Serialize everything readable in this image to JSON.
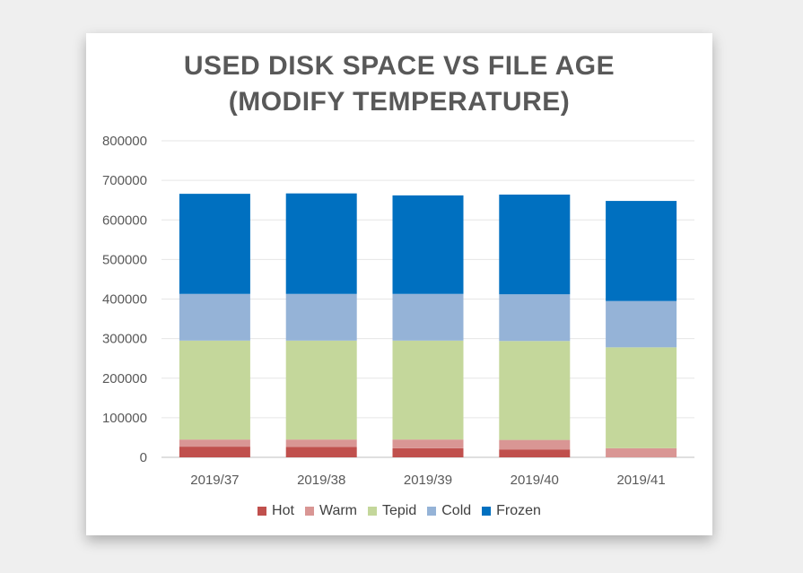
{
  "chart_data": {
    "type": "bar",
    "stacked": true,
    "title": "USED DISK SPACE VS FILE AGE",
    "subtitle": "(MODIFY TEMPERATURE)",
    "categories": [
      "2019/37",
      "2019/38",
      "2019/39",
      "2019/40",
      "2019/41"
    ],
    "series": [
      {
        "name": "Hot",
        "color": "#c0504d",
        "values": [
          27000,
          26000,
          23000,
          20000,
          0
        ]
      },
      {
        "name": "Warm",
        "color": "#d99694",
        "values": [
          18000,
          19000,
          22000,
          24000,
          23000
        ]
      },
      {
        "name": "Tepid",
        "color": "#c4d79b",
        "values": [
          250000,
          250000,
          250000,
          250000,
          255000
        ]
      },
      {
        "name": "Cold",
        "color": "#95b3d7",
        "values": [
          118000,
          118000,
          118000,
          118000,
          117000
        ]
      },
      {
        "name": "Frozen",
        "color": "#0070c0",
        "values": [
          253000,
          254000,
          249000,
          252000,
          253000
        ]
      }
    ],
    "ylim": [
      0,
      800000
    ],
    "yticks": [
      "0",
      "100000",
      "200000",
      "300000",
      "400000",
      "500000",
      "600000",
      "700000",
      "800000"
    ],
    "grid": true,
    "legend_position": "bottom"
  }
}
